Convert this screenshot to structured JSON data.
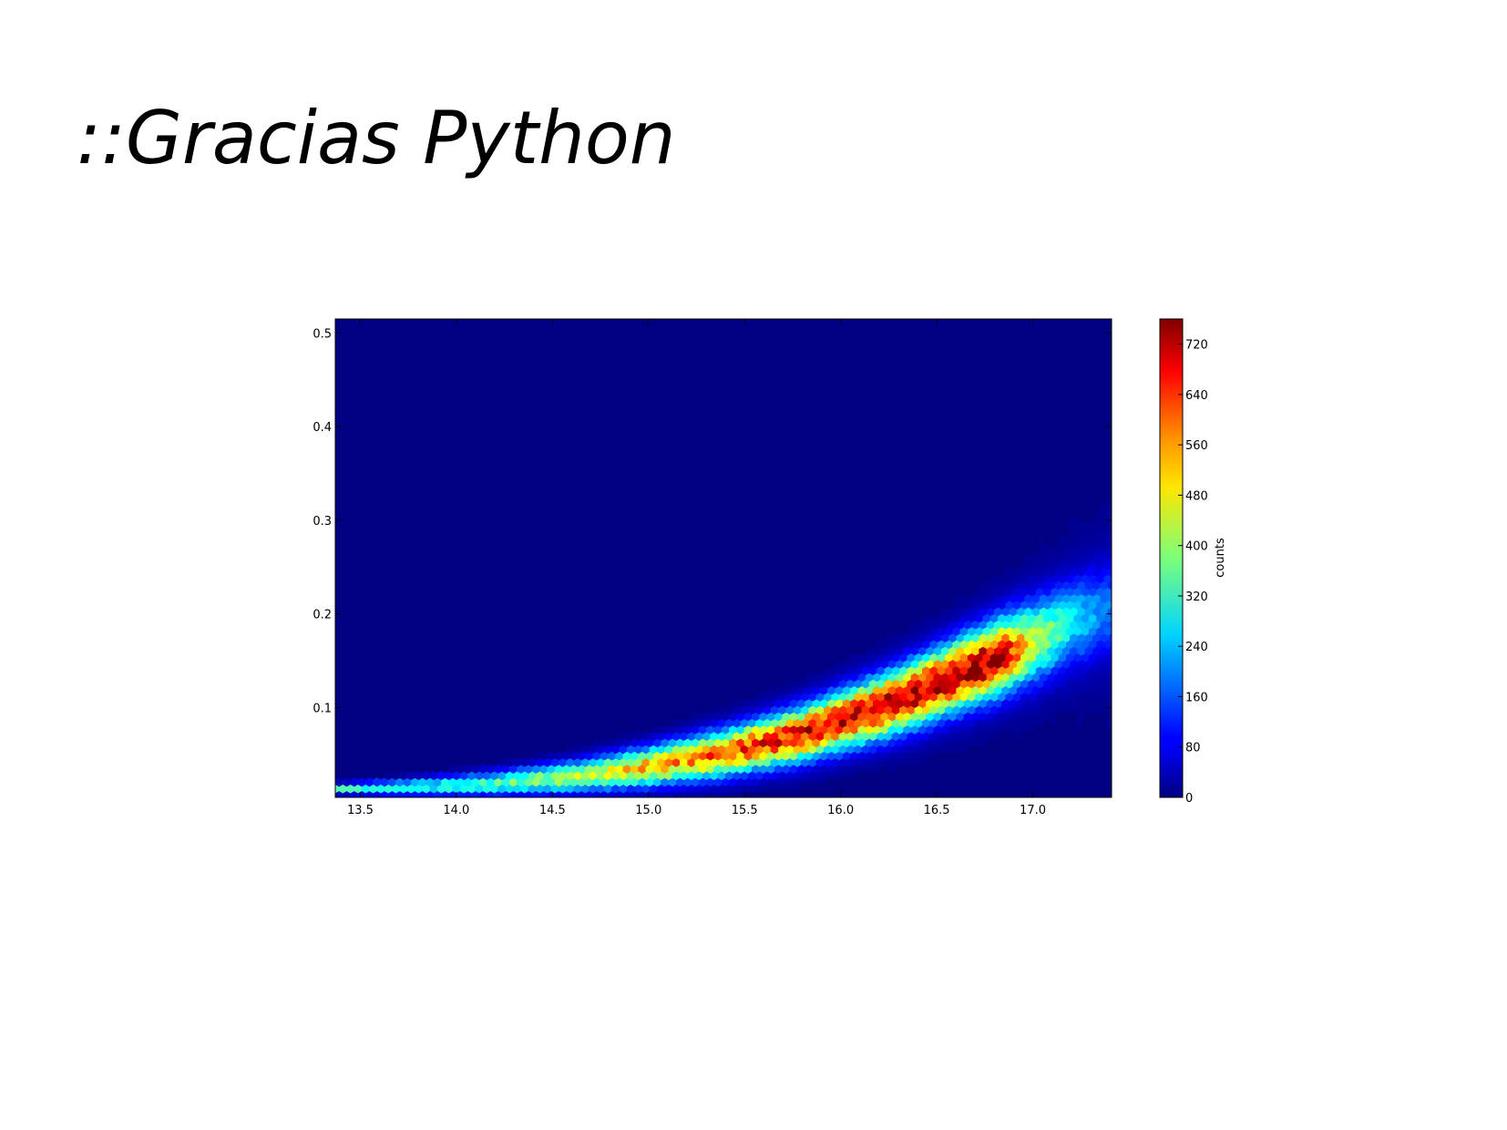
{
  "slide": {
    "title": "::Gracias Python"
  },
  "chart_data": {
    "type": "heatmap",
    "subtype": "hexbin",
    "title": "",
    "xlabel": "",
    "ylabel": "",
    "xlim": [
      13.37,
      17.41
    ],
    "ylim": [
      0.004,
      0.515
    ],
    "xticks": [
      "13.5",
      "14.0",
      "14.5",
      "15.0",
      "15.5",
      "16.0",
      "16.5",
      "17.0"
    ],
    "yticks": [
      "0.1",
      "0.2",
      "0.3",
      "0.4",
      "0.5"
    ],
    "colormap": "jet",
    "colorbar": {
      "label": "counts",
      "range": [
        0,
        760
      ],
      "ticks": [
        "0",
        "80",
        "160",
        "240",
        "320",
        "400",
        "480",
        "560",
        "640",
        "720"
      ]
    },
    "ridge": {
      "x": [
        13.4,
        13.8,
        14.2,
        14.6,
        15.0,
        15.4,
        15.8,
        16.2,
        16.5,
        16.8,
        17.0,
        17.2,
        17.4
      ],
      "y": [
        0.013,
        0.015,
        0.019,
        0.026,
        0.037,
        0.052,
        0.072,
        0.1,
        0.125,
        0.152,
        0.17,
        0.19,
        0.205
      ],
      "counts": [
        320,
        300,
        330,
        420,
        520,
        600,
        670,
        700,
        720,
        740,
        450,
        260,
        160
      ]
    }
  }
}
